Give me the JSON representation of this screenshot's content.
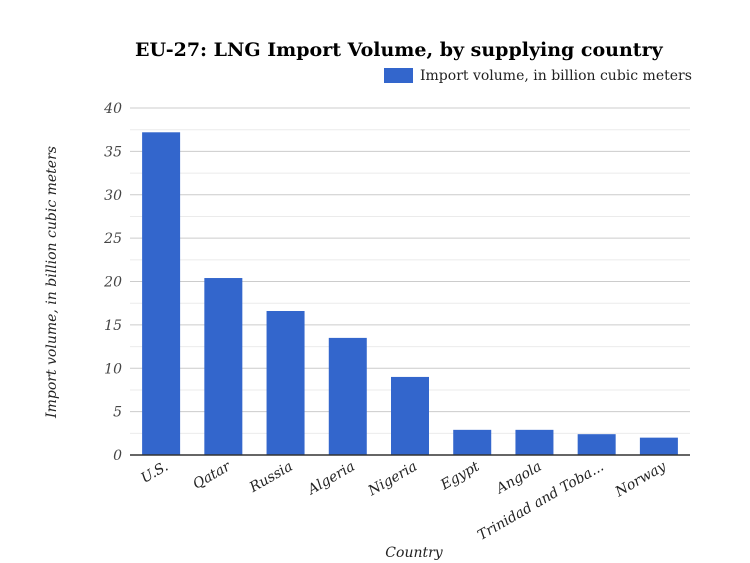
{
  "chart_data": {
    "type": "bar",
    "title": "EU-27: LNG Import Volume, by supplying country",
    "xlabel": "Country",
    "ylabel": "Import volume, in billion cubic meters",
    "categories": [
      "U.S.",
      "Qatar",
      "Russia",
      "Algeria",
      "Nigeria",
      "Egypt",
      "Angola",
      "Trinidad and Toba...",
      "Norway"
    ],
    "series": [
      {
        "name": "Import volume, in billion cubic meters",
        "values": [
          37.2,
          20.4,
          16.6,
          13.5,
          9.0,
          2.9,
          2.9,
          2.4,
          2.0
        ],
        "color": "#3366cc"
      }
    ],
    "ylim": [
      0,
      40
    ],
    "yticks": [
      "0",
      "5",
      "10",
      "15",
      "20",
      "25",
      "30",
      "35",
      "40"
    ],
    "grid": true,
    "legend": "top-right"
  }
}
